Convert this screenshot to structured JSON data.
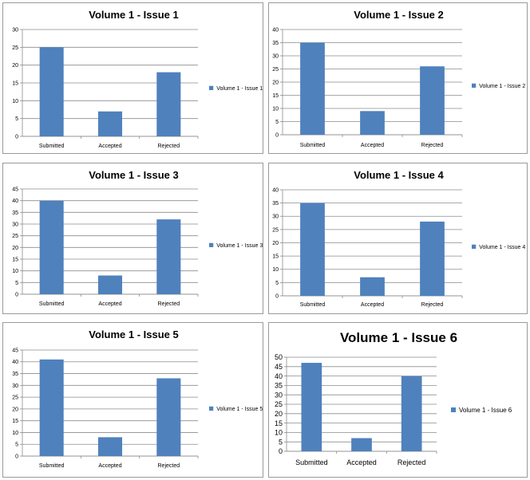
{
  "colors": {
    "bar": "#4f81bd",
    "grid": "#8c8c8c",
    "axis": "#8c8c8c",
    "border": "#9a9a9a"
  },
  "chart_data": [
    {
      "type": "bar",
      "title": "Volume 1 - Issue 1",
      "categories": [
        "Submitted",
        "Accepted",
        "Rejected"
      ],
      "series": [
        {
          "name": "Volume 1 - Issue 1",
          "values": [
            25,
            7,
            18
          ]
        }
      ],
      "ylim": [
        0,
        30
      ],
      "ystep": 5,
      "grid": true,
      "legend": "right"
    },
    {
      "type": "bar",
      "title": "Volume 1 - Issue 2",
      "categories": [
        "Submitted",
        "Accepted",
        "Rejected"
      ],
      "series": [
        {
          "name": "Volume 1 - Issue 2",
          "values": [
            35,
            9,
            26
          ]
        }
      ],
      "ylim": [
        0,
        40
      ],
      "ystep": 5,
      "grid": true,
      "legend": "right"
    },
    {
      "type": "bar",
      "title": "Volume 1 - Issue 3",
      "categories": [
        "Submitted",
        "Accepted",
        "Rejected"
      ],
      "series": [
        {
          "name": "Volume 1 - Issue 3",
          "values": [
            40,
            8,
            32
          ]
        }
      ],
      "ylim": [
        0,
        45
      ],
      "ystep": 5,
      "grid": true,
      "legend": "right"
    },
    {
      "type": "bar",
      "title": "Volume 1 - Issue 4",
      "categories": [
        "Submitted",
        "Accepted",
        "Rejected"
      ],
      "series": [
        {
          "name": "Volume 1 - Issue 4",
          "values": [
            35,
            7,
            28
          ]
        }
      ],
      "ylim": [
        0,
        40
      ],
      "ystep": 5,
      "grid": true,
      "legend": "right"
    },
    {
      "type": "bar",
      "title": "Volume 1 - Issue 5",
      "categories": [
        "Submitted",
        "Accepted",
        "Rejected"
      ],
      "series": [
        {
          "name": "Volume 1 - Issue 5",
          "values": [
            41,
            8,
            33
          ]
        }
      ],
      "ylim": [
        0,
        45
      ],
      "ystep": 5,
      "grid": true,
      "legend": "right"
    },
    {
      "type": "bar",
      "title": "Volume 1 - Issue 6",
      "categories": [
        "Submitted",
        "Accepted",
        "Rejected"
      ],
      "series": [
        {
          "name": "Volume 1 - Issue 6",
          "values": [
            47,
            7,
            40
          ]
        }
      ],
      "ylim": [
        0,
        50
      ],
      "ystep": 5,
      "grid": true,
      "legend": "right"
    }
  ]
}
